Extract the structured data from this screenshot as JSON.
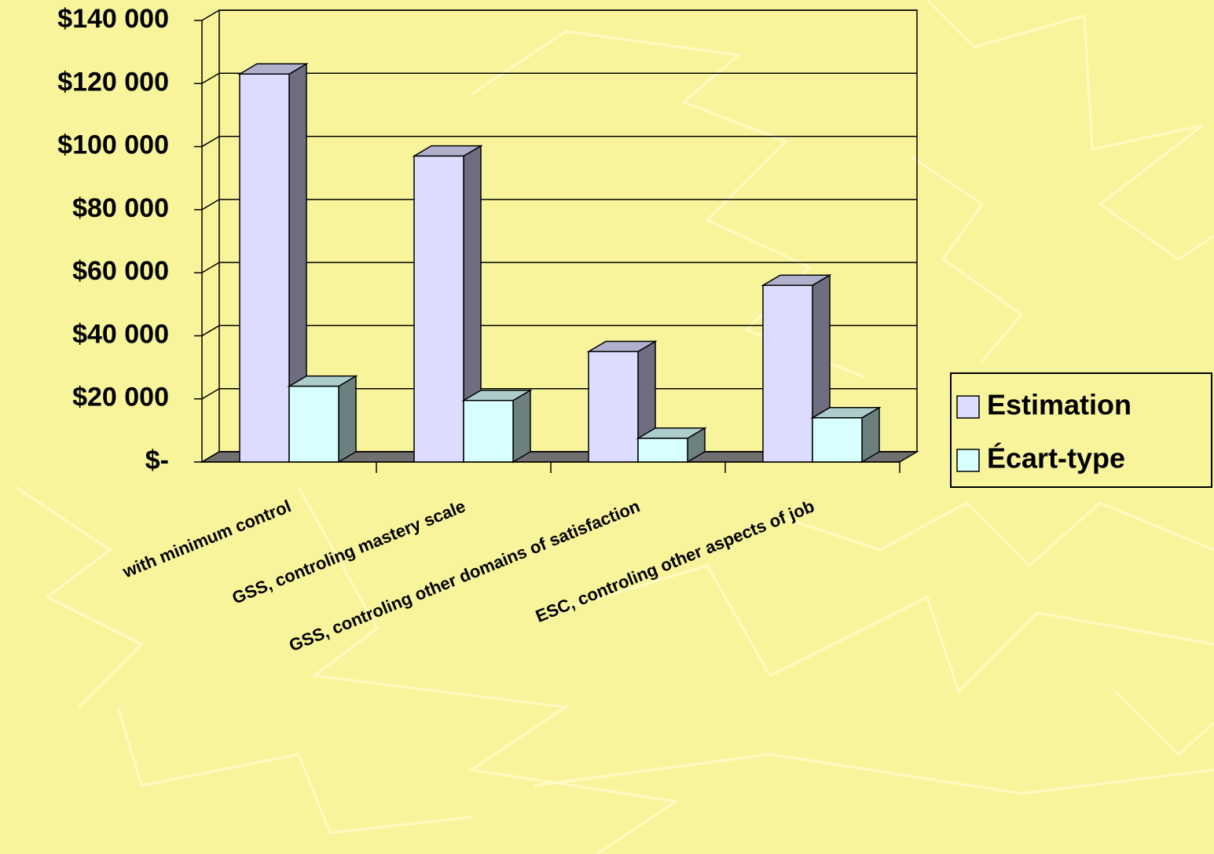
{
  "chart_data": {
    "type": "bar3d",
    "categories": [
      "with minimum control",
      "GSS, controling mastery scale",
      "GSS, controling other domains of satisfaction",
      "ESC, controling other aspects of job"
    ],
    "series": [
      {
        "name": "Estimation",
        "color": "#dcdcff",
        "values": [
          123000,
          97000,
          35000,
          56000
        ]
      },
      {
        "name": "Écart-type",
        "color": "#d8ffff",
        "values": [
          24000,
          19500,
          7500,
          14000
        ]
      }
    ],
    "ylim": [
      0,
      140000
    ],
    "yticks": [
      {
        "value": 0,
        "label": "$-"
      },
      {
        "value": 20000,
        "label": "$20 000"
      },
      {
        "value": 40000,
        "label": "$40 000"
      },
      {
        "value": 60000,
        "label": "$60 000"
      },
      {
        "value": 80000,
        "label": "$80 000"
      },
      {
        "value": 100000,
        "label": "$100 000"
      },
      {
        "value": 120000,
        "label": "$120 000"
      },
      {
        "value": 140000,
        "label": "$140 000"
      }
    ],
    "grid": true,
    "legend": "right"
  }
}
